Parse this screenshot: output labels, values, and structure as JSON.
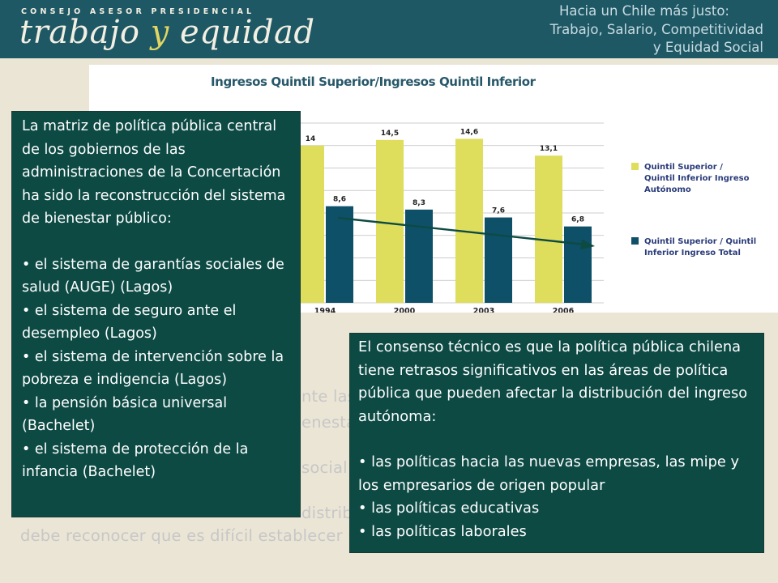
{
  "header": {
    "org_line": "CONSEJO ASESOR PRESIDENCIAL",
    "org_name_a": "trabajo",
    "org_name_y": "y",
    "org_name_b": "equidad",
    "tagline": [
      "Hacia un Chile más justo:",
      "Trabajo, Salario, Competitividad",
      "y Equidad Social"
    ]
  },
  "chart_data": {
    "type": "bar",
    "title": "Ingresos Quintil Superior/Ingresos Quintil Inferior",
    "categories": [
      "1994",
      "2000",
      "2003",
      "2006"
    ],
    "series": [
      {
        "name": "Quintil Superior / Quintil Inferior Ingreso Autónomo",
        "values": [
          14,
          14.5,
          14.6,
          13.1
        ],
        "labels": [
          "14",
          "14,5",
          "14,6",
          "13,1"
        ],
        "color": "#dedd5c"
      },
      {
        "name": "Quintil Superior / Quintil Inferior Ingreso Total",
        "values": [
          8.6,
          8.3,
          7.6,
          6.8
        ],
        "labels": [
          "8,6",
          "8,3",
          "7,6",
          "6,8"
        ],
        "color": "#0e5068"
      }
    ],
    "ylim": [
      0,
      16
    ],
    "grid": true,
    "legend_position": "right",
    "annotations": [
      "downward trend arrow over Ingreso Total bars"
    ],
    "legend_lines": [
      [
        "Quintil Superior /",
        "Quintil Inferior Ingreso",
        "Autónomo"
      ],
      [
        "Quintil Superior / Quintil",
        "Inferior Ingreso Total"
      ]
    ]
  },
  "background_text": [
    "nte las",
    "enesta",
    "social",
    "distribu",
    "debe reconocer que es difícil establecer u"
  ],
  "left_box": {
    "intro": "La matriz de política pública central de los gobiernos de las administraciones de la Concertación ha sido la reconstrucción del sistema de bienestar público:",
    "bullets": [
      "• el sistema de garantías sociales de salud (AUGE) (Lagos)",
      "• el sistema de seguro ante el desempleo (Lagos)",
      "• el sistema de intervención sobre la pobreza e indigencia (Lagos)",
      "• la pensión básica universal (Bachelet)",
      "• el sistema de protección de la infancia (Bachelet)"
    ]
  },
  "right_box": {
    "intro": "El consenso técnico es que la política pública chilena tiene retrasos significativos en las áreas de política pública que pueden afectar la distribución del ingreso autónoma:",
    "bullets": [
      "• las políticas hacia las nuevas empresas, las mipe y los empresarios de origen popular",
      "• las políticas educativas",
      "• las políticas laborales"
    ]
  },
  "colors": {
    "header_bg": "#1e5865",
    "page_bg": "#ebe5d5",
    "box_bg": "#0d4a44",
    "bar_autonomo": "#dedd5c",
    "bar_total": "#0e5068",
    "title_color": "#27586a"
  }
}
